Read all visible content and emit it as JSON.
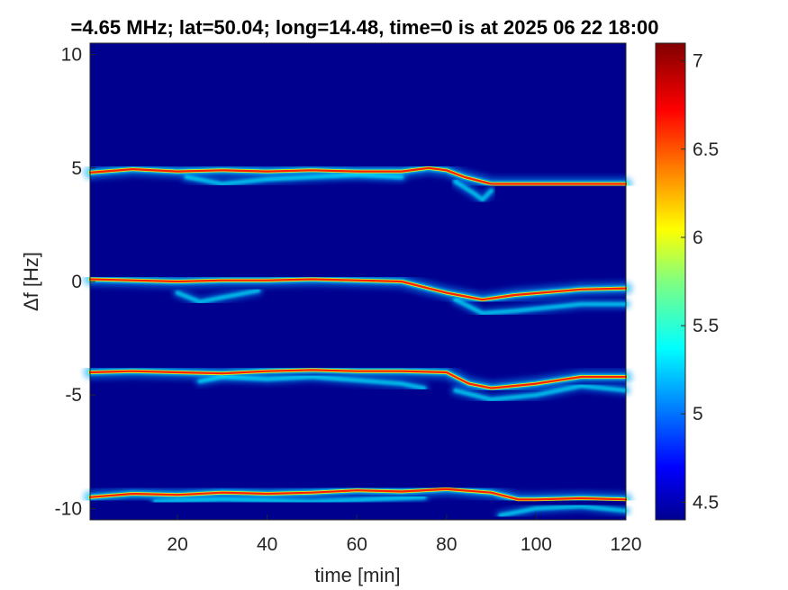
{
  "chart_data": {
    "type": "heatmap",
    "title": "=4.65 MHz;  lat=50.04; long=14.48, time=0 is at 2025 06 22 18:00",
    "xlabel": "time [min]",
    "ylabel": "Δf [Hz]",
    "xlim": [
      0.5,
      120
    ],
    "ylim": [
      -10.5,
      10.5
    ],
    "xticks": [
      20,
      40,
      60,
      80,
      100,
      120
    ],
    "yticks": [
      10,
      5,
      0,
      -5,
      -10
    ],
    "colorbar": {
      "range": [
        4.4,
        7.1
      ],
      "ticks": [
        7,
        6.5,
        6,
        5.5,
        5,
        4.5
      ]
    },
    "background_color": "#00008f",
    "traces": [
      {
        "name": "trace-5",
        "points": [
          [
            0.5,
            4.8
          ],
          [
            10,
            4.95
          ],
          [
            20,
            4.85
          ],
          [
            30,
            4.9
          ],
          [
            40,
            4.85
          ],
          [
            50,
            4.9
          ],
          [
            60,
            4.85
          ],
          [
            70,
            4.85
          ],
          [
            76,
            5.0
          ],
          [
            80,
            4.9
          ],
          [
            84,
            4.6
          ],
          [
            90,
            4.3
          ],
          [
            100,
            4.3
          ],
          [
            110,
            4.3
          ],
          [
            120,
            4.3
          ]
        ]
      },
      {
        "name": "trace-5-low",
        "points": [
          [
            22,
            4.6
          ],
          [
            30,
            4.3
          ],
          [
            40,
            4.5
          ],
          [
            50,
            4.6
          ],
          [
            60,
            4.7
          ],
          [
            70,
            4.6
          ]
        ]
      },
      {
        "name": "trace-5-tail",
        "points": [
          [
            82,
            4.4
          ],
          [
            86,
            3.9
          ],
          [
            88,
            3.6
          ],
          [
            90,
            4.0
          ]
        ]
      },
      {
        "name": "trace-0",
        "points": [
          [
            0.5,
            0.1
          ],
          [
            10,
            0.05
          ],
          [
            20,
            0.0
          ],
          [
            30,
            0.05
          ],
          [
            40,
            0.05
          ],
          [
            50,
            0.1
          ],
          [
            60,
            0.05
          ],
          [
            70,
            0.0
          ],
          [
            76,
            -0.3
          ],
          [
            80,
            -0.5
          ],
          [
            88,
            -0.8
          ],
          [
            95,
            -0.6
          ],
          [
            110,
            -0.35
          ],
          [
            120,
            -0.3
          ]
        ]
      },
      {
        "name": "trace-0-low",
        "points": [
          [
            20,
            -0.5
          ],
          [
            25,
            -0.9
          ],
          [
            30,
            -0.7
          ],
          [
            38,
            -0.4
          ]
        ]
      },
      {
        "name": "trace-0-tail",
        "points": [
          [
            82,
            -0.8
          ],
          [
            88,
            -1.4
          ],
          [
            95,
            -1.3
          ],
          [
            110,
            -1.0
          ],
          [
            120,
            -1.0
          ]
        ]
      },
      {
        "name": "trace-m4",
        "points": [
          [
            0.5,
            -4.0
          ],
          [
            10,
            -3.95
          ],
          [
            20,
            -4.0
          ],
          [
            30,
            -4.05
          ],
          [
            40,
            -3.95
          ],
          [
            50,
            -3.9
          ],
          [
            60,
            -3.95
          ],
          [
            70,
            -3.95
          ],
          [
            80,
            -4.0
          ],
          [
            85,
            -4.5
          ],
          [
            90,
            -4.7
          ],
          [
            100,
            -4.5
          ],
          [
            110,
            -4.2
          ],
          [
            120,
            -4.2
          ]
        ]
      },
      {
        "name": "trace-m4-low",
        "points": [
          [
            25,
            -4.4
          ],
          [
            30,
            -4.2
          ],
          [
            40,
            -4.3
          ],
          [
            50,
            -4.2
          ],
          [
            70,
            -4.5
          ],
          [
            75,
            -4.7
          ]
        ]
      },
      {
        "name": "trace-m4-tail",
        "points": [
          [
            82,
            -4.8
          ],
          [
            90,
            -5.2
          ],
          [
            100,
            -5.0
          ],
          [
            110,
            -4.6
          ],
          [
            120,
            -4.8
          ]
        ]
      },
      {
        "name": "trace-m9",
        "points": [
          [
            0.5,
            -9.5
          ],
          [
            10,
            -9.35
          ],
          [
            20,
            -9.4
          ],
          [
            30,
            -9.3
          ],
          [
            40,
            -9.35
          ],
          [
            50,
            -9.3
          ],
          [
            60,
            -9.2
          ],
          [
            70,
            -9.25
          ],
          [
            80,
            -9.15
          ],
          [
            90,
            -9.3
          ],
          [
            96,
            -9.6
          ],
          [
            100,
            -9.6
          ],
          [
            110,
            -9.55
          ],
          [
            120,
            -9.6
          ]
        ]
      },
      {
        "name": "trace-m9-low",
        "points": [
          [
            15,
            -9.7
          ],
          [
            30,
            -9.6
          ],
          [
            50,
            -9.7
          ],
          [
            75,
            -9.5
          ]
        ]
      },
      {
        "name": "trace-m9-tail",
        "points": [
          [
            92,
            -10.3
          ],
          [
            100,
            -10.0
          ],
          [
            110,
            -9.9
          ],
          [
            120,
            -10.1
          ]
        ]
      }
    ]
  }
}
